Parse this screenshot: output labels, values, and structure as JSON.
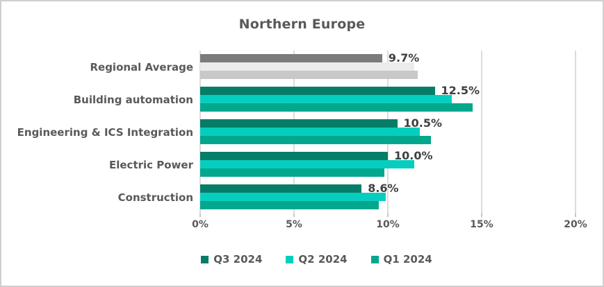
{
  "chart_data": {
    "type": "bar",
    "orientation": "horizontal",
    "title": "Northern Europe",
    "categories": [
      "Regional Average",
      "Building automation",
      "Engineering & ICS Integration",
      "Electric Power",
      "Construction"
    ],
    "series": [
      {
        "name": "Q3 2024",
        "color": "#067d68",
        "color_regional_average": "#7b7b7b",
        "values": [
          9.7,
          12.5,
          10.5,
          10.0,
          8.6
        ]
      },
      {
        "name": "Q2 2024",
        "color": "#06cebe",
        "color_regional_average": "#ececec",
        "values": [
          11.4,
          13.4,
          11.7,
          11.4,
          9.9
        ]
      },
      {
        "name": "Q1 2024",
        "color": "#02a78d",
        "color_regional_average": "#c8c8c9",
        "values": [
          11.6,
          14.5,
          12.3,
          9.8,
          9.5
        ]
      }
    ],
    "data_labels": [
      "9.7%",
      "12.5%",
      "10.5%",
      "10.0%",
      "8.6%"
    ],
    "x_ticks": [
      "0%",
      "5%",
      "10%",
      "15%",
      "20%"
    ],
    "xlim": [
      0,
      20
    ],
    "grid": true,
    "legend_position": "bottom",
    "colors": {
      "title_text": "#595959",
      "axis_text": "#595959",
      "data_label_text": "#3f3f3f",
      "gridline": "#dcdcdc",
      "frame_border": "#cfcfcf"
    }
  }
}
